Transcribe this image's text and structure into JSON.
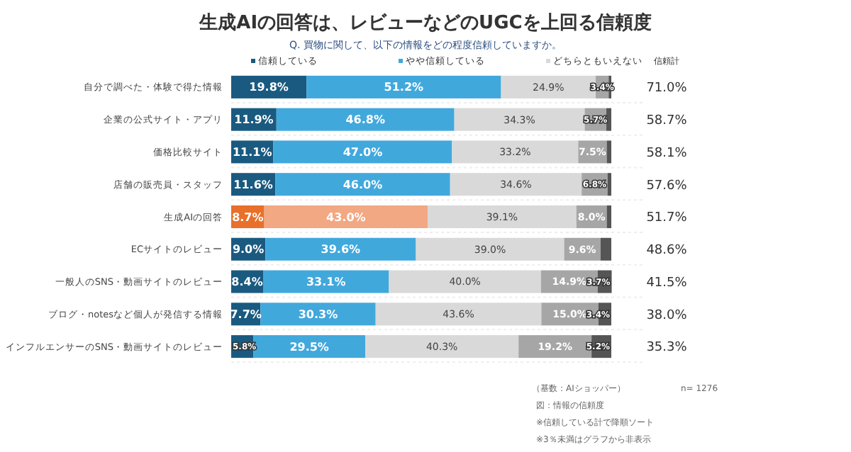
{
  "chart_data": {
    "type": "bar",
    "orientation": "horizontal",
    "stacked": true,
    "title": "生成AIの回答は、レビューなどのUGCを上回る信頼度",
    "subtitle": "Q. 買物に関して、以下の情報をどの程度信頼していますか。",
    "categories": [
      "自分で調べた・体験で得た情報",
      "企業の公式サイト・アプリ",
      "価格比較サイト",
      "店舗の販売員・スタッフ",
      "生成AIの回答",
      "ECサイトのレビュー",
      "一般人のSNS・動画サイトのレビュー",
      "ブログ・notesなど個人が発信する情報",
      "インフルエンサーのSNS・動画サイトのレビュー"
    ],
    "xlim": [
      0,
      100
    ],
    "tick_labels": "y",
    "legend": "top",
    "series": [
      {
        "name": "信頼している",
        "color": "#1a5a80",
        "colors": [
          "#1a5a80",
          "#1a5a80",
          "#1a5a80",
          "#1a5a80",
          "#e8702a",
          "#1a5a80",
          "#1a5a80",
          "#1a5a80",
          "#1a5a80"
        ],
        "values": [
          19.8,
          11.9,
          11.1,
          11.6,
          8.7,
          9.0,
          8.4,
          7.7,
          5.8
        ],
        "value_labels": [
          "19.8%",
          "11.9%",
          "11.1%",
          "11.6%",
          "8.7%",
          "9.0%",
          "8.4%",
          "7.7%",
          "5.8%"
        ]
      },
      {
        "name": "やや信頼している",
        "color": "#41a8dc",
        "colors": [
          "#41a8dc",
          "#41a8dc",
          "#41a8dc",
          "#41a8dc",
          "#f2a882",
          "#41a8dc",
          "#41a8dc",
          "#41a8dc",
          "#41a8dc"
        ],
        "values": [
          51.2,
          46.8,
          47.0,
          46.0,
          43.0,
          39.6,
          33.1,
          30.3,
          29.5
        ],
        "value_labels": [
          "51.2%",
          "46.8%",
          "47.0%",
          "46.0%",
          "43.0%",
          "39.6%",
          "33.1%",
          "30.3%",
          "29.5%"
        ]
      },
      {
        "name": "どちらともいえない",
        "color": "#d9d9d9",
        "values": [
          24.9,
          34.3,
          33.2,
          34.6,
          39.1,
          39.0,
          40.0,
          43.6,
          40.3
        ],
        "value_labels": [
          "24.9%",
          "34.3%",
          "33.2%",
          "34.6%",
          "39.1%",
          "39.0%",
          "40.0%",
          "43.6%",
          "40.3%"
        ]
      },
      {
        "color": "#a6a6a6",
        "values": [
          3.4,
          5.7,
          7.5,
          6.8,
          8.0,
          9.6,
          14.9,
          15.0,
          19.2
        ],
        "value_labels": [
          "3.4%",
          "5.7%",
          "7.5%",
          "6.8%",
          "8.0%",
          "9.6%",
          "14.9%",
          "15.0%",
          "19.2%"
        ]
      },
      {
        "color": "#555555",
        "values": [
          0.7,
          1.3,
          1.2,
          1.0,
          1.2,
          2.8,
          3.7,
          3.4,
          5.2
        ],
        "value_labels": [
          null,
          null,
          null,
          null,
          null,
          null,
          "3.7%",
          "3.4%",
          "5.2%"
        ]
      }
    ],
    "annotations": [
      "信頼計",
      "71.0%",
      "58.7%",
      "58.1%",
      "57.6%",
      "51.7%",
      "48.6%",
      "41.5%",
      "38.0%",
      "35.3%",
      "（基数：AIショッパー）",
      "n= 1276",
      "図：情報の信頼度",
      "※信頼している計で降順ソート",
      "※3％未満はグラフから非表示"
    ]
  }
}
